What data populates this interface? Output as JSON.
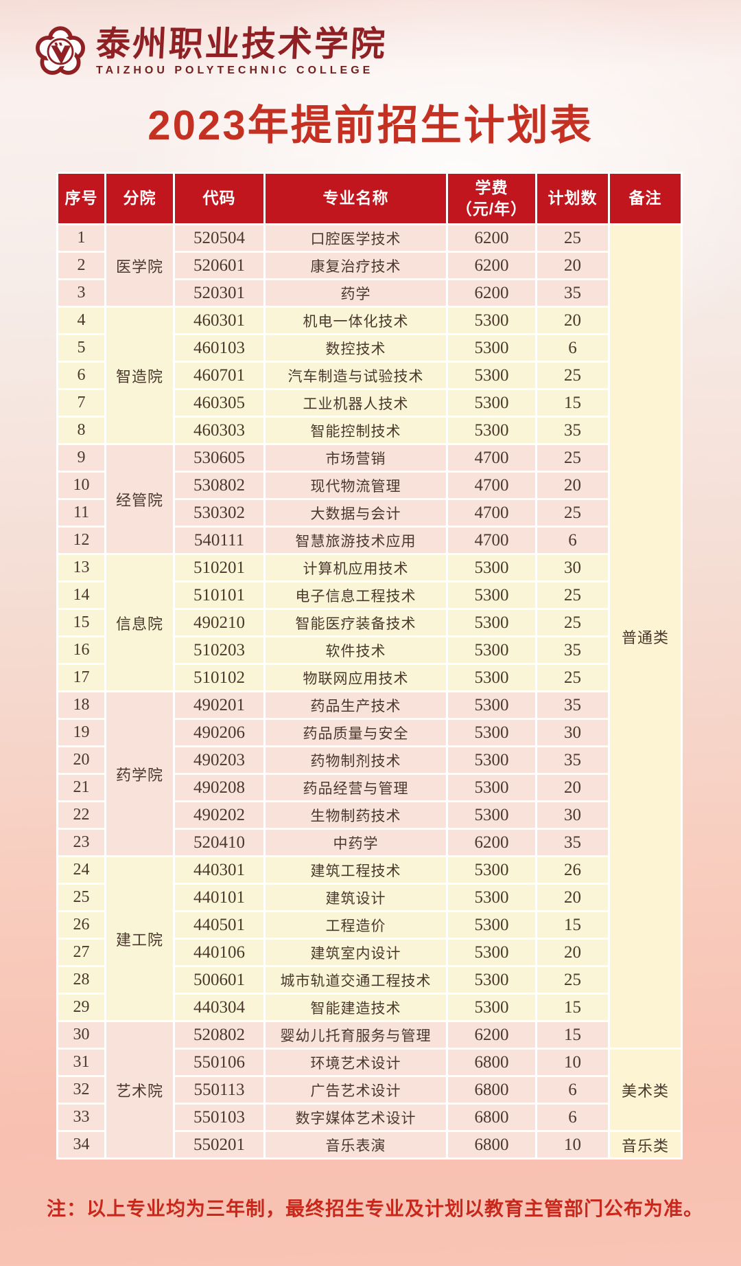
{
  "header": {
    "school_name_cn": "泰州职业技术学院",
    "school_name_en": "TAIZHOU POLYTECHNIC COLLEGE",
    "logo": "plum-blossom-emblem"
  },
  "title": "2023年提前招生计划表",
  "note": "注：以上专业均为三年制，最终招生专业及计划以教育主管部门公布为准。",
  "colors": {
    "header_bg": "#c2161e",
    "header_text": "#ffffff",
    "title_red": "#c43122",
    "note_red": "#c7281b",
    "logo_maroon": "#8f2024",
    "body_text": "#4a382c",
    "row_pink": "#f8e2da",
    "row_yellow": "#fbf5d7",
    "remark_yellow": "#fcf4d2",
    "table_gap": "#ffffff"
  },
  "table": {
    "columns": [
      "序号",
      "分院",
      "代码",
      "专业名称",
      "学费\n（元/年）",
      "计划数",
      "备注"
    ],
    "college_groups": [
      {
        "name": "医学院",
        "rows": 3,
        "theme": "pink"
      },
      {
        "name": "智造院",
        "rows": 5,
        "theme": "yellow"
      },
      {
        "name": "经管院",
        "rows": 4,
        "theme": "pink"
      },
      {
        "name": "信息院",
        "rows": 5,
        "theme": "yellow"
      },
      {
        "name": "药学院",
        "rows": 6,
        "theme": "pink"
      },
      {
        "name": "建工院",
        "rows": 6,
        "theme": "yellow"
      },
      {
        "name": "艺术院",
        "rows": 5,
        "theme": "pink"
      }
    ],
    "remark_groups": [
      {
        "label": "普通类",
        "rows": 30
      },
      {
        "label": "美术类",
        "rows": 3
      },
      {
        "label": "音乐类",
        "rows": 1
      }
    ],
    "rows": [
      {
        "no": "1",
        "code": "520504",
        "major": "口腔医学技术",
        "tuition": "6200",
        "plan": "25"
      },
      {
        "no": "2",
        "code": "520601",
        "major": "康复治疗技术",
        "tuition": "6200",
        "plan": "20"
      },
      {
        "no": "3",
        "code": "520301",
        "major": "药学",
        "tuition": "6200",
        "plan": "35"
      },
      {
        "no": "4",
        "code": "460301",
        "major": "机电一体化技术",
        "tuition": "5300",
        "plan": "20"
      },
      {
        "no": "5",
        "code": "460103",
        "major": "数控技术",
        "tuition": "5300",
        "plan": "6"
      },
      {
        "no": "6",
        "code": "460701",
        "major": "汽车制造与试验技术",
        "tuition": "5300",
        "plan": "25"
      },
      {
        "no": "7",
        "code": "460305",
        "major": "工业机器人技术",
        "tuition": "5300",
        "plan": "15"
      },
      {
        "no": "8",
        "code": "460303",
        "major": "智能控制技术",
        "tuition": "5300",
        "plan": "35"
      },
      {
        "no": "9",
        "code": "530605",
        "major": "市场营销",
        "tuition": "4700",
        "plan": "25"
      },
      {
        "no": "10",
        "code": "530802",
        "major": "现代物流管理",
        "tuition": "4700",
        "plan": "20"
      },
      {
        "no": "11",
        "code": "530302",
        "major": "大数据与会计",
        "tuition": "4700",
        "plan": "25"
      },
      {
        "no": "12",
        "code": "540111",
        "major": "智慧旅游技术应用",
        "tuition": "4700",
        "plan": "6"
      },
      {
        "no": "13",
        "code": "510201",
        "major": "计算机应用技术",
        "tuition": "5300",
        "plan": "30"
      },
      {
        "no": "14",
        "code": "510101",
        "major": "电子信息工程技术",
        "tuition": "5300",
        "plan": "25"
      },
      {
        "no": "15",
        "code": "490210",
        "major": "智能医疗装备技术",
        "tuition": "5300",
        "plan": "25"
      },
      {
        "no": "16",
        "code": "510203",
        "major": "软件技术",
        "tuition": "5300",
        "plan": "35"
      },
      {
        "no": "17",
        "code": "510102",
        "major": "物联网应用技术",
        "tuition": "5300",
        "plan": "25"
      },
      {
        "no": "18",
        "code": "490201",
        "major": "药品生产技术",
        "tuition": "5300",
        "plan": "35"
      },
      {
        "no": "19",
        "code": "490206",
        "major": "药品质量与安全",
        "tuition": "5300",
        "plan": "30"
      },
      {
        "no": "20",
        "code": "490203",
        "major": "药物制剂技术",
        "tuition": "5300",
        "plan": "35"
      },
      {
        "no": "21",
        "code": "490208",
        "major": "药品经营与管理",
        "tuition": "5300",
        "plan": "20"
      },
      {
        "no": "22",
        "code": "490202",
        "major": "生物制药技术",
        "tuition": "5300",
        "plan": "30"
      },
      {
        "no": "23",
        "code": "520410",
        "major": "中药学",
        "tuition": "6200",
        "plan": "35"
      },
      {
        "no": "24",
        "code": "440301",
        "major": "建筑工程技术",
        "tuition": "5300",
        "plan": "26"
      },
      {
        "no": "25",
        "code": "440101",
        "major": "建筑设计",
        "tuition": "5300",
        "plan": "20"
      },
      {
        "no": "26",
        "code": "440501",
        "major": "工程造价",
        "tuition": "5300",
        "plan": "15"
      },
      {
        "no": "27",
        "code": "440106",
        "major": "建筑室内设计",
        "tuition": "5300",
        "plan": "20"
      },
      {
        "no": "28",
        "code": "500601",
        "major": "城市轨道交通工程技术",
        "tuition": "5300",
        "plan": "25"
      },
      {
        "no": "29",
        "code": "440304",
        "major": "智能建造技术",
        "tuition": "5300",
        "plan": "15"
      },
      {
        "no": "30",
        "code": "520802",
        "major": "婴幼儿托育服务与管理",
        "tuition": "6200",
        "plan": "15"
      },
      {
        "no": "31",
        "code": "550106",
        "major": "环境艺术设计",
        "tuition": "6800",
        "plan": "10"
      },
      {
        "no": "32",
        "code": "550113",
        "major": "广告艺术设计",
        "tuition": "6800",
        "plan": "6"
      },
      {
        "no": "33",
        "code": "550103",
        "major": "数字媒体艺术设计",
        "tuition": "6800",
        "plan": "6"
      },
      {
        "no": "34",
        "code": "550201",
        "major": "音乐表演",
        "tuition": "6800",
        "plan": "10"
      }
    ]
  }
}
